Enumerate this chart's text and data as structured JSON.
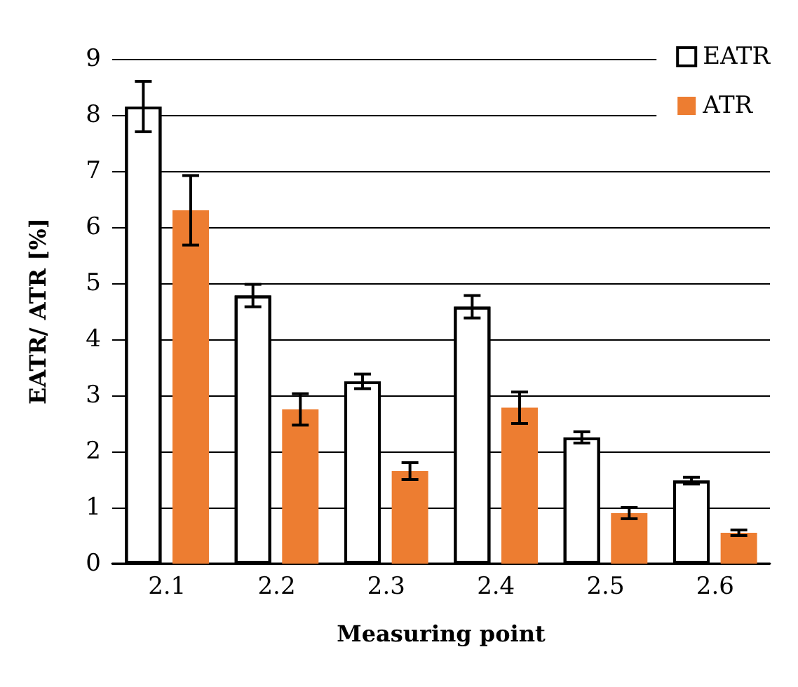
{
  "chart_data": {
    "type": "bar",
    "xlabel": "Measuring point",
    "ylabel": "EATR/ ATR [%]",
    "categories": [
      "2.1",
      "2.2",
      "2.3",
      "2.4",
      "2.5",
      "2.6"
    ],
    "series": [
      {
        "name": "EATR",
        "color": "#ffffff",
        "values": [
          8.15,
          4.78,
          3.25,
          4.58,
          2.25,
          1.48
        ],
        "errors": [
          0.45,
          0.2,
          0.13,
          0.2,
          0.1,
          0.06
        ]
      },
      {
        "name": "ATR",
        "color": "#ed7d31",
        "values": [
          6.3,
          2.75,
          1.65,
          2.78,
          0.9,
          0.55
        ],
        "errors": [
          0.62,
          0.28,
          0.15,
          0.28,
          0.1,
          0.05
        ]
      }
    ],
    "ylim": [
      0,
      9
    ],
    "yticks": [
      0,
      1,
      2,
      3,
      4,
      5,
      6,
      7,
      8,
      9
    ],
    "grid": "y",
    "legend": "top right"
  }
}
